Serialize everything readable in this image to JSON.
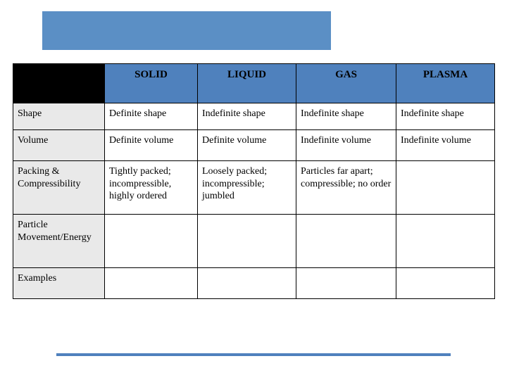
{
  "table": {
    "type": "table",
    "header_bg": "#4f81bd",
    "corner_bg": "#000000",
    "rowhead_bg": "#e9e9e9",
    "cell_bg": "#ffffff",
    "border_color": "#000000",
    "columns": [
      "",
      "SOLID",
      "LIQUID",
      "GAS",
      "PLASMA"
    ],
    "rows": [
      {
        "label": "Shape",
        "cells": [
          "Definite shape",
          "Indefinite shape",
          "Indefinite shape",
          "Indefinite shape"
        ]
      },
      {
        "label": "Volume",
        "cells": [
          "Definite volume",
          "Definite volume",
          "Indefinite volume",
          "Indefinite volume"
        ]
      },
      {
        "label": "Packing & Compressibility",
        "cells": [
          "Tightly packed; incompressible, highly ordered",
          "Loosely packed; incompressible; jumbled",
          "Particles far apart; compressible; no order",
          ""
        ]
      },
      {
        "label": "Particle Movement/Energy",
        "cells": [
          "",
          "",
          "",
          ""
        ]
      },
      {
        "label": "Examples",
        "cells": [
          "",
          "",
          "",
          ""
        ]
      }
    ]
  },
  "decor": {
    "top_bar_color": "#5b8fc5",
    "bottom_line_color": "#4f81bd"
  }
}
